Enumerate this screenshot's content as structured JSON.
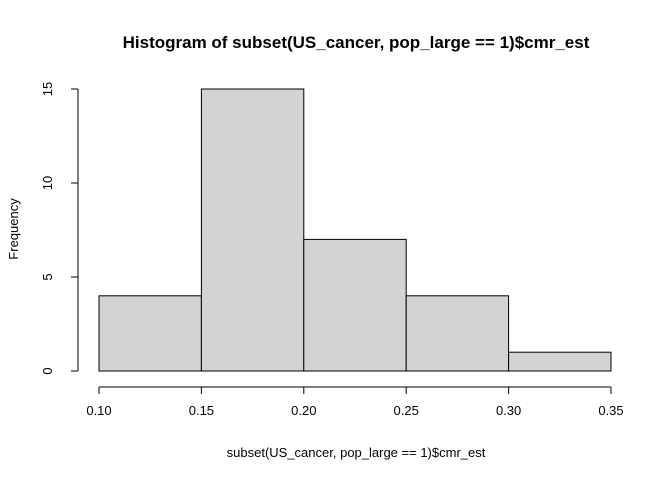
{
  "chart_data": {
    "type": "bar",
    "title": "Histogram of subset(US_cancer, pop_large == 1)$cmr_est",
    "xlabel": "subset(US_cancer, pop_large == 1)$cmr_est",
    "ylabel": "Frequency",
    "bins": [
      {
        "from": 0.1,
        "to": 0.15,
        "count": 4
      },
      {
        "from": 0.15,
        "to": 0.2,
        "count": 15
      },
      {
        "from": 0.2,
        "to": 0.25,
        "count": 7
      },
      {
        "from": 0.25,
        "to": 0.3,
        "count": 4
      },
      {
        "from": 0.3,
        "to": 0.35,
        "count": 1
      }
    ],
    "xlim": [
      0.1,
      0.35
    ],
    "ylim": [
      0,
      15
    ],
    "xticks": [
      "0.10",
      "0.15",
      "0.20",
      "0.25",
      "0.30",
      "0.35"
    ],
    "yticks": [
      "0",
      "5",
      "10",
      "15"
    ],
    "bar_fill": "#d3d3d3",
    "grid": false,
    "legend": "none"
  }
}
